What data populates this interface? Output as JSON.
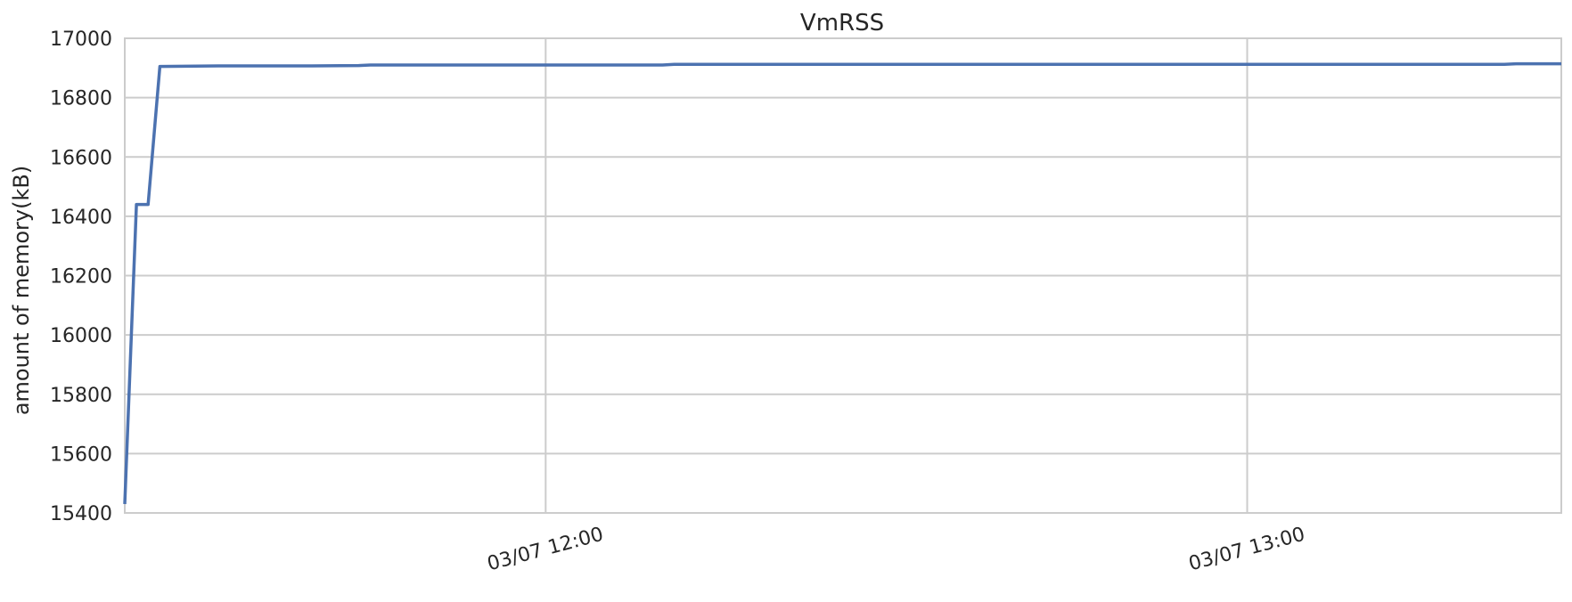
{
  "chart_data": {
    "type": "line",
    "title": "VmRSS",
    "xlabel": "",
    "ylabel": "amount of memory(kB)",
    "xlim": [
      "2024-03-07T11:24:00",
      "2024-03-07T13:26:52"
    ],
    "ylim": [
      15400,
      17000
    ],
    "grid": true,
    "legend": "none",
    "color": "#4c72b0",
    "x_ticks": [
      {
        "x": "2024-03-07T12:00:00",
        "label": "03/07 12:00"
      },
      {
        "x": "2024-03-07T13:00:00",
        "label": "03/07 13:00"
      }
    ],
    "y_ticks": [
      15400,
      15600,
      15800,
      16000,
      16200,
      16400,
      16600,
      16800,
      17000
    ],
    "series": [
      {
        "x": [
          "2024-03-07T11:24:00",
          "2024-03-07T11:25:00",
          "2024-03-07T11:26:00",
          "2024-03-07T11:27:00",
          "2024-03-07T11:32:00",
          "2024-03-07T11:40:00",
          "2024-03-07T11:44:00",
          "2024-03-07T11:45:00",
          "2024-03-07T12:10:00",
          "2024-03-07T12:11:00",
          "2024-03-07T13:22:00",
          "2024-03-07T13:23:00",
          "2024-03-07T13:26:52"
        ],
        "values": [
          15430,
          16440,
          16440,
          16905,
          16907,
          16907,
          16908,
          16910,
          16910,
          16912,
          16912,
          16914,
          16914
        ]
      }
    ]
  }
}
